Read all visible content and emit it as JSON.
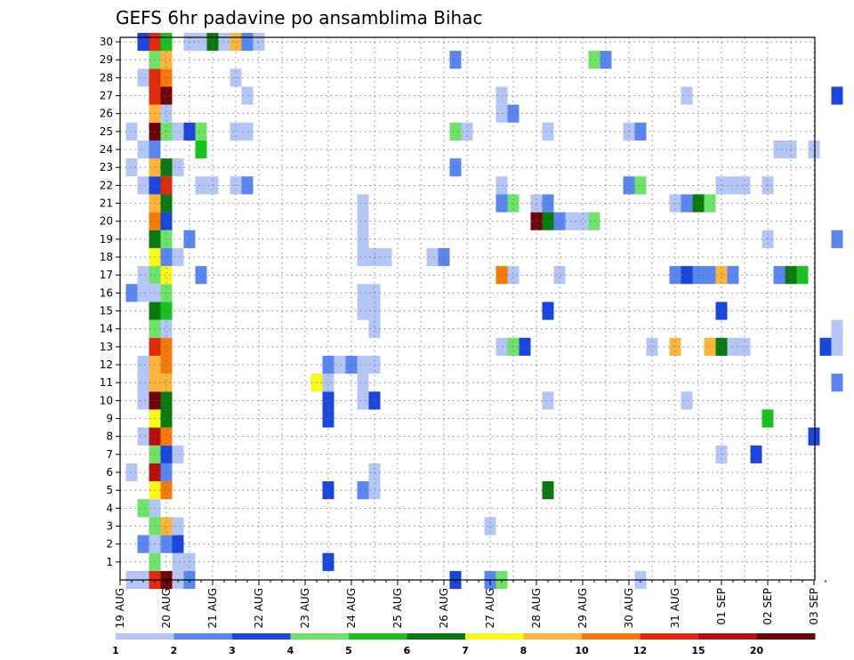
{
  "chart_data": {
    "type": "heatmap",
    "title": "GEFS 6hr padavine po ansamblima Bihac",
    "x_labels": [
      "19 AUG",
      "20 AUG",
      "21 AUG",
      "22 AUG",
      "23 AUG",
      "24 AUG",
      "25 AUG",
      "26 AUG",
      "27 AUG",
      "28 AUG",
      "29 AUG",
      "30 AUG",
      "31 AUG",
      "01 SEP",
      "02 SEP",
      "03 SEP"
    ],
    "steps_per_day": 4,
    "x_range_steps": [
      0,
      61
    ],
    "y_labels": [
      "1",
      "2",
      "3",
      "4",
      "5",
      "6",
      "7",
      "8",
      "9",
      "10",
      "11",
      "12",
      "13",
      "14",
      "15",
      "16",
      "17",
      "18",
      "19",
      "20",
      "21",
      "22",
      "23",
      "24",
      "25",
      "26",
      "27",
      "28",
      "29",
      "30"
    ],
    "y_range": [
      0,
      30
    ],
    "grid": true,
    "colorbar": {
      "placement": "bottom",
      "labels": [
        "1",
        "2",
        "3",
        "4",
        "5",
        "6",
        "7",
        "8",
        "10",
        "12",
        "15",
        "20"
      ],
      "colors": [
        "#b3c6f5",
        "#5a86f0",
        "#1b46db",
        "#6ee36a",
        "#17c21e",
        "#0a7a10",
        "#f8f81c",
        "#fcb43c",
        "#f57a0a",
        "#df2a0e",
        "#b70f0f",
        "#6e0409"
      ]
    },
    "cells": [
      [
        0,
        0,
        1
      ],
      [
        1,
        0,
        1
      ],
      [
        2,
        0,
        10
      ],
      [
        3,
        0,
        12
      ],
      [
        4,
        0,
        1
      ],
      [
        5,
        0,
        2
      ],
      [
        28,
        0,
        3
      ],
      [
        31,
        0,
        2
      ],
      [
        32,
        0,
        4
      ],
      [
        44,
        0,
        1
      ],
      [
        2,
        1,
        4
      ],
      [
        4,
        1,
        1
      ],
      [
        5,
        1,
        1
      ],
      [
        17,
        1,
        3
      ],
      [
        1,
        2,
        2
      ],
      [
        2,
        2,
        1
      ],
      [
        3,
        2,
        2
      ],
      [
        4,
        2,
        3
      ],
      [
        2,
        3,
        4
      ],
      [
        3,
        3,
        8
      ],
      [
        4,
        3,
        1
      ],
      [
        31,
        3,
        1
      ],
      [
        1,
        4,
        4
      ],
      [
        2,
        4,
        1
      ],
      [
        2,
        5,
        7
      ],
      [
        3,
        5,
        9
      ],
      [
        17,
        5,
        3
      ],
      [
        20,
        5,
        2
      ],
      [
        21,
        5,
        1
      ],
      [
        36,
        5,
        6
      ],
      [
        0,
        6,
        1
      ],
      [
        2,
        6,
        11
      ],
      [
        3,
        6,
        2
      ],
      [
        21,
        6,
        1
      ],
      [
        2,
        7,
        4
      ],
      [
        3,
        7,
        3
      ],
      [
        4,
        7,
        1
      ],
      [
        51,
        7,
        1
      ],
      [
        54,
        7,
        3
      ],
      [
        1,
        8,
        1
      ],
      [
        2,
        8,
        11
      ],
      [
        3,
        8,
        9
      ],
      [
        59,
        8,
        3
      ],
      [
        2,
        9,
        7
      ],
      [
        3,
        9,
        6
      ],
      [
        17,
        9,
        3
      ],
      [
        55,
        9,
        5
      ],
      [
        1,
        10,
        1
      ],
      [
        2,
        10,
        12
      ],
      [
        3,
        10,
        6
      ],
      [
        17,
        10,
        3
      ],
      [
        20,
        10,
        1
      ],
      [
        21,
        10,
        3
      ],
      [
        36,
        10,
        1
      ],
      [
        48,
        10,
        1
      ],
      [
        1,
        11,
        1
      ],
      [
        2,
        11,
        8
      ],
      [
        3,
        11,
        8
      ],
      [
        16,
        11,
        7
      ],
      [
        17,
        11,
        1
      ],
      [
        20,
        11,
        1
      ],
      [
        61,
        11,
        2
      ],
      [
        1,
        12,
        1
      ],
      [
        2,
        12,
        8
      ],
      [
        3,
        12,
        9
      ],
      [
        17,
        12,
        2
      ],
      [
        18,
        12,
        1
      ],
      [
        19,
        12,
        2
      ],
      [
        20,
        12,
        1
      ],
      [
        21,
        12,
        1
      ],
      [
        2,
        13,
        10
      ],
      [
        3,
        13,
        9
      ],
      [
        32,
        13,
        1
      ],
      [
        33,
        13,
        4
      ],
      [
        34,
        13,
        3
      ],
      [
        45,
        13,
        1
      ],
      [
        47,
        13,
        8
      ],
      [
        50,
        13,
        8
      ],
      [
        51,
        13,
        6
      ],
      [
        52,
        13,
        1
      ],
      [
        53,
        13,
        1
      ],
      [
        60,
        13,
        3
      ],
      [
        61,
        13,
        1
      ],
      [
        2,
        14,
        4
      ],
      [
        3,
        14,
        1
      ],
      [
        21,
        14,
        1
      ],
      [
        61,
        14,
        1
      ],
      [
        2,
        15,
        6
      ],
      [
        3,
        15,
        5
      ],
      [
        20,
        15,
        1
      ],
      [
        21,
        15,
        1
      ],
      [
        36,
        15,
        3
      ],
      [
        51,
        15,
        3
      ],
      [
        0,
        16,
        2
      ],
      [
        1,
        16,
        1
      ],
      [
        2,
        16,
        1
      ],
      [
        3,
        16,
        4
      ],
      [
        20,
        16,
        1
      ],
      [
        21,
        16,
        1
      ],
      [
        1,
        17,
        1
      ],
      [
        2,
        17,
        4
      ],
      [
        3,
        17,
        7
      ],
      [
        6,
        17,
        2
      ],
      [
        32,
        17,
        9
      ],
      [
        33,
        17,
        1
      ],
      [
        37,
        17,
        1
      ],
      [
        47,
        17,
        2
      ],
      [
        48,
        17,
        3
      ],
      [
        49,
        17,
        2
      ],
      [
        50,
        17,
        2
      ],
      [
        51,
        17,
        8
      ],
      [
        52,
        17,
        2
      ],
      [
        56,
        17,
        2
      ],
      [
        57,
        17,
        6
      ],
      [
        58,
        17,
        5
      ],
      [
        2,
        18,
        7
      ],
      [
        3,
        18,
        2
      ],
      [
        4,
        18,
        1
      ],
      [
        20,
        18,
        1
      ],
      [
        21,
        18,
        1
      ],
      [
        22,
        18,
        1
      ],
      [
        26,
        18,
        1
      ],
      [
        27,
        18,
        2
      ],
      [
        2,
        19,
        6
      ],
      [
        3,
        19,
        4
      ],
      [
        5,
        19,
        2
      ],
      [
        20,
        19,
        1
      ],
      [
        55,
        19,
        1
      ],
      [
        61,
        19,
        2
      ],
      [
        2,
        20,
        9
      ],
      [
        3,
        20,
        3
      ],
      [
        20,
        20,
        1
      ],
      [
        35,
        20,
        12
      ],
      [
        36,
        20,
        6
      ],
      [
        37,
        20,
        2
      ],
      [
        38,
        20,
        1
      ],
      [
        39,
        20,
        1
      ],
      [
        40,
        20,
        4
      ],
      [
        2,
        21,
        8
      ],
      [
        3,
        21,
        6
      ],
      [
        20,
        21,
        1
      ],
      [
        32,
        21,
        2
      ],
      [
        33,
        21,
        4
      ],
      [
        35,
        21,
        1
      ],
      [
        36,
        21,
        2
      ],
      [
        47,
        21,
        1
      ],
      [
        48,
        21,
        2
      ],
      [
        49,
        21,
        6
      ],
      [
        50,
        21,
        4
      ],
      [
        1,
        22,
        1
      ],
      [
        2,
        22,
        3
      ],
      [
        3,
        22,
        10
      ],
      [
        6,
        22,
        1
      ],
      [
        7,
        22,
        1
      ],
      [
        9,
        22,
        1
      ],
      [
        10,
        22,
        2
      ],
      [
        32,
        22,
        1
      ],
      [
        43,
        22,
        2
      ],
      [
        44,
        22,
        4
      ],
      [
        51,
        22,
        1
      ],
      [
        52,
        22,
        1
      ],
      [
        53,
        22,
        1
      ],
      [
        55,
        22,
        1
      ],
      [
        0,
        23,
        1
      ],
      [
        2,
        23,
        8
      ],
      [
        3,
        23,
        6
      ],
      [
        4,
        23,
        1
      ],
      [
        28,
        23,
        2
      ],
      [
        1,
        24,
        1
      ],
      [
        2,
        24,
        2
      ],
      [
        6,
        24,
        5
      ],
      [
        56,
        24,
        1
      ],
      [
        57,
        24,
        1
      ],
      [
        59,
        24,
        1
      ],
      [
        0,
        25,
        1
      ],
      [
        2,
        25,
        12
      ],
      [
        3,
        25,
        4
      ],
      [
        4,
        25,
        1
      ],
      [
        5,
        25,
        3
      ],
      [
        6,
        25,
        4
      ],
      [
        9,
        25,
        1
      ],
      [
        10,
        25,
        1
      ],
      [
        28,
        25,
        4
      ],
      [
        29,
        25,
        1
      ],
      [
        36,
        25,
        1
      ],
      [
        43,
        25,
        1
      ],
      [
        44,
        25,
        2
      ],
      [
        2,
        26,
        8
      ],
      [
        3,
        26,
        1
      ],
      [
        32,
        26,
        1
      ],
      [
        33,
        26,
        2
      ],
      [
        2,
        27,
        10
      ],
      [
        3,
        27,
        12
      ],
      [
        10,
        27,
        1
      ],
      [
        32,
        27,
        1
      ],
      [
        48,
        27,
        1
      ],
      [
        61,
        27,
        3
      ],
      [
        1,
        28,
        1
      ],
      [
        2,
        28,
        10
      ],
      [
        3,
        28,
        9
      ],
      [
        9,
        28,
        1
      ],
      [
        2,
        29,
        4
      ],
      [
        3,
        29,
        8
      ],
      [
        28,
        29,
        2
      ],
      [
        40,
        29,
        4
      ],
      [
        41,
        29,
        2
      ],
      [
        1,
        30,
        3
      ],
      [
        2,
        30,
        10
      ],
      [
        3,
        30,
        5
      ],
      [
        5,
        30,
        1
      ],
      [
        6,
        30,
        1
      ],
      [
        7,
        30,
        6
      ],
      [
        8,
        30,
        1
      ],
      [
        9,
        30,
        8
      ],
      [
        10,
        30,
        2
      ],
      [
        11,
        30,
        1
      ]
    ]
  }
}
